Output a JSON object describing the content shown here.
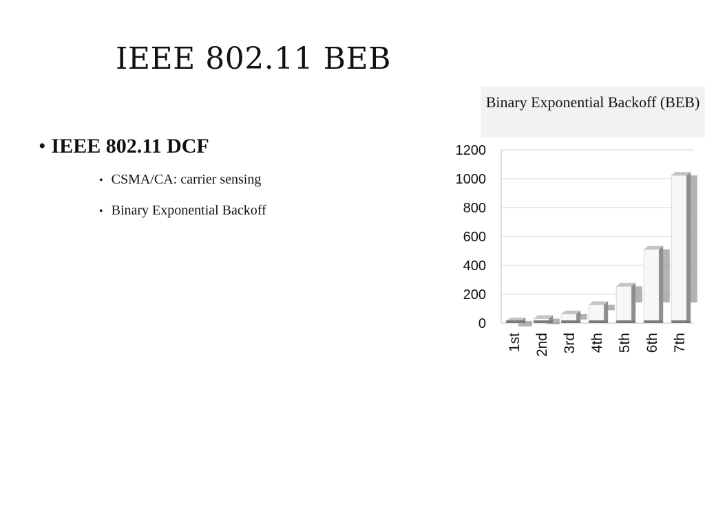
{
  "slide": {
    "title": "IEEE 802.11 BEB",
    "bullet_main": "IEEE 802.11 DCF",
    "sub_bullets": [
      "CSMA/CA: carrier sensing",
      "Binary Exponential Backoff"
    ],
    "bullet_glyph": "•"
  },
  "chart_data": {
    "type": "bar",
    "title": "Binary Exponential Backoff (BEB)",
    "xlabel": "",
    "ylabel": "",
    "categories": [
      "1st",
      "2nd",
      "3rd",
      "4th",
      "5th",
      "6th",
      "7th"
    ],
    "series": [
      {
        "values": [
          15,
          31,
          63,
          127,
          255,
          511,
          1023
        ],
        "color": "#9a9a9a"
      },
      {
        "values": [
          15,
          31,
          63,
          127,
          255,
          511,
          1023
        ],
        "color": "#f7f7f7"
      }
    ],
    "ylim": [
      0,
      1200
    ],
    "yticks": [
      0,
      200,
      400,
      600,
      800,
      1000,
      1200
    ],
    "grid": true,
    "legend": "none"
  }
}
